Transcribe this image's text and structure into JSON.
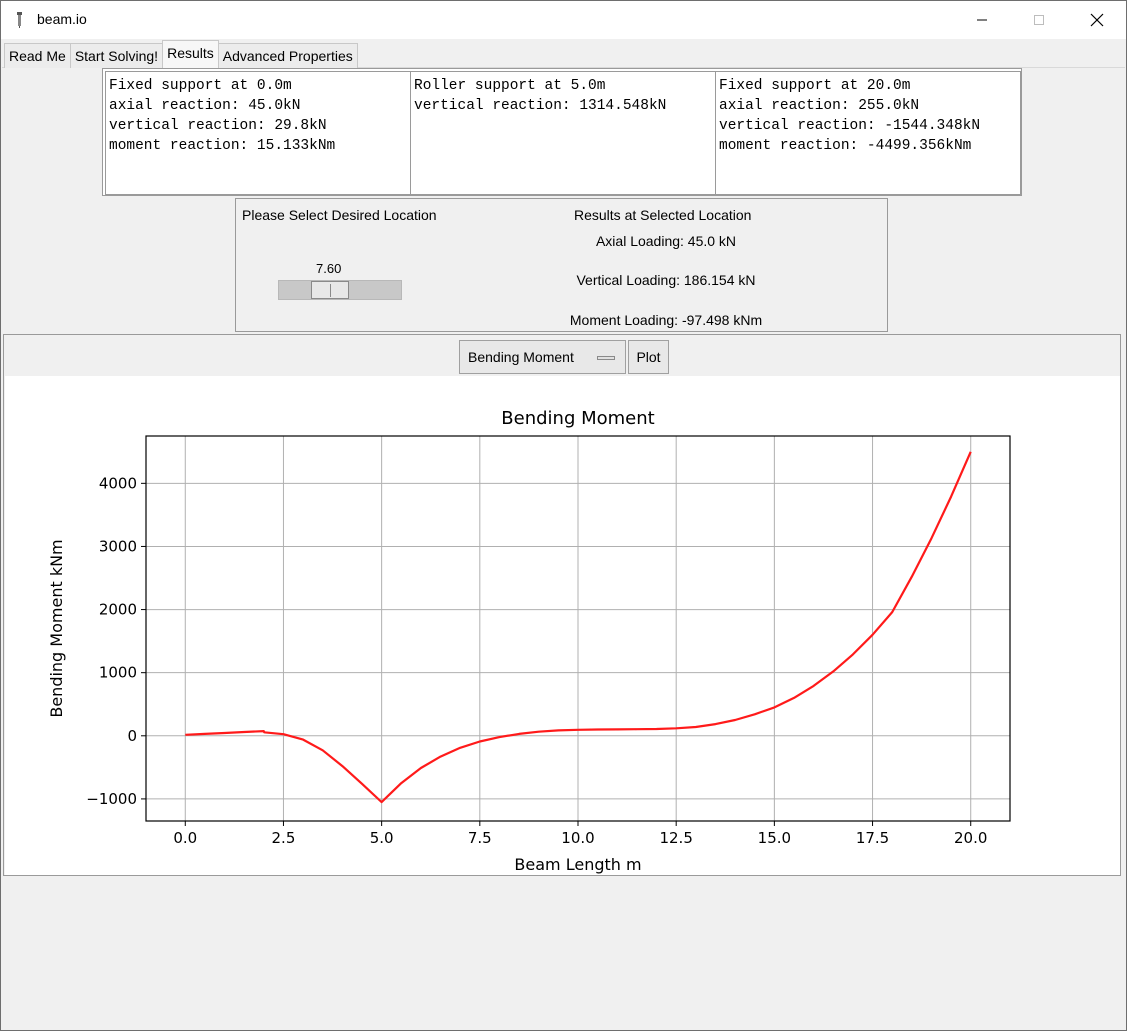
{
  "window": {
    "title": "beam.io"
  },
  "tabs": [
    {
      "label": "Read Me"
    },
    {
      "label": "Start Solving!"
    },
    {
      "label": "Results",
      "active": true
    },
    {
      "label": "Advanced Properties"
    }
  ],
  "reactions": [
    {
      "text": "Fixed support at 0.0m\naxial reaction: 45.0kN\nvertical reaction: 29.8kN\nmoment reaction: 15.133kNm"
    },
    {
      "text": "Roller support at 5.0m\nvertical reaction: 1314.548kN"
    },
    {
      "text": "Fixed support at 20.0m\naxial reaction: 255.0kN\nvertical reaction: -1544.348kN\nmoment reaction: -4499.356kNm"
    }
  ],
  "location": {
    "label": "Please Select Desired Location",
    "slider_value": "7.60",
    "slider_fraction": 0.38
  },
  "results": {
    "title": "Results at Selected Location",
    "axial": "Axial Loading: 45.0 kN",
    "vertical": "Vertical Loading: 186.154 kN",
    "moment": "Moment Loading: -97.498 kNm"
  },
  "plot_controls": {
    "selected": "Bending Moment",
    "button": "Plot"
  },
  "colors": {
    "line": "#ff1a1a"
  },
  "chart_data": {
    "type": "line",
    "title": "Bending Moment",
    "xlabel": "Beam Length m",
    "ylabel": "Bending Moment kNm",
    "xlim": [
      -1.0,
      21.0
    ],
    "ylim": [
      -1350,
      4750
    ],
    "xticks": [
      "0.0",
      "2.5",
      "5.0",
      "7.5",
      "10.0",
      "12.5",
      "15.0",
      "17.5",
      "20.0"
    ],
    "yticks": [
      "−1000",
      "0",
      "1000",
      "2000",
      "3000",
      "4000"
    ],
    "grid": true,
    "series": [
      {
        "x": [
          0,
          0.5,
          1.0,
          1.5,
          2.0,
          2.01,
          2.5,
          3.0,
          3.5,
          4.0,
          4.5,
          5.0,
          5.5,
          6.0,
          6.5,
          7.0,
          7.5,
          8.0,
          8.5,
          9.0,
          9.5,
          10.0,
          10.5,
          11.0,
          11.5,
          12.0,
          12.5,
          13.0,
          13.5,
          14.0,
          14.5,
          15.0,
          15.5,
          16.0,
          16.5,
          17.0,
          17.5,
          18.0,
          18.5,
          19.0,
          19.5,
          20.0
        ],
        "y": [
          15,
          30,
          45,
          60,
          75,
          55,
          25,
          -60,
          -230,
          -480,
          -760,
          -1050,
          -750,
          -510,
          -330,
          -190,
          -90,
          -20,
          30,
          65,
          85,
          95,
          100,
          102,
          104,
          108,
          118,
          140,
          185,
          250,
          340,
          450,
          600,
          790,
          1020,
          1290,
          1600,
          1960,
          2520,
          3130,
          3790,
          4500
        ]
      }
    ]
  }
}
